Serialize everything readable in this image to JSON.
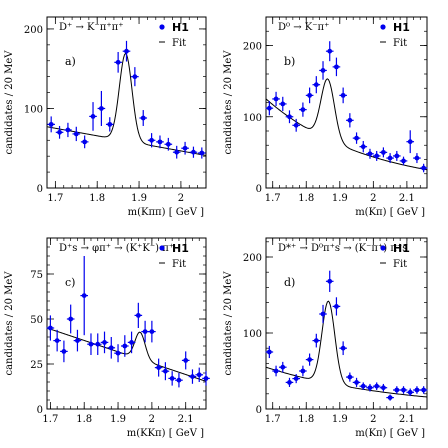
{
  "figure": {
    "background": "#ffffff",
    "marker_color": "#0000ee",
    "fit_color": "#000000"
  },
  "chart_data": [
    {
      "type": "scatter",
      "panel_label": "a)",
      "title": "D⁺ → K⁻π⁺π⁺",
      "xlabel": "m(Kππ)  [ GeV ]",
      "ylabel": "candidates / 20 MeV",
      "xlim": [
        1.68,
        2.06
      ],
      "ylim": [
        0,
        215
      ],
      "xticks": [
        1.7,
        1.8,
        1.9,
        2.0
      ],
      "xticklabels": [
        "1.7",
        "1.8",
        "1.9",
        "2"
      ],
      "yticks": [
        0,
        100,
        200
      ],
      "yticklabels": [
        "0",
        "100",
        "200"
      ],
      "legend": {
        "data_label": "H1",
        "fit_label": "Fit",
        "position": "top-right"
      },
      "series": [
        {
          "name": "H1",
          "kind": "points",
          "x": [
            1.69,
            1.71,
            1.73,
            1.75,
            1.77,
            1.79,
            1.81,
            1.83,
            1.85,
            1.87,
            1.89,
            1.91,
            1.93,
            1.95,
            1.97,
            1.99,
            2.01,
            2.03,
            2.05
          ],
          "y": [
            80,
            70,
            73,
            68,
            58,
            90,
            100,
            80,
            158,
            172,
            140,
            88,
            60,
            58,
            55,
            45,
            50,
            45,
            44
          ],
          "yerr": [
            10,
            8,
            9,
            9,
            8,
            18,
            22,
            9,
            13,
            13,
            12,
            10,
            9,
            8,
            8,
            8,
            8,
            7,
            7
          ]
        },
        {
          "name": "Fit",
          "kind": "curve",
          "model": "gauss_plus_linear",
          "params": {
            "mean": 1.868,
            "sigma": 0.015,
            "amplitude": 110,
            "bg_at_start": 77,
            "bg_slope": -95,
            "x_start": 1.68
          }
        }
      ]
    },
    {
      "type": "scatter",
      "panel_label": "b)",
      "title": "D⁰ → K⁻π⁺",
      "xlabel": "m(Kπ)  [ GeV ]",
      "ylabel": "candidates / 20 MeV",
      "xlim": [
        1.68,
        2.16
      ],
      "ylim": [
        0,
        240
      ],
      "xticks": [
        1.7,
        1.8,
        1.9,
        2.0,
        2.1
      ],
      "xticklabels": [
        "1.7",
        "1.8",
        "1.9",
        "2",
        "2.1"
      ],
      "yticks": [
        0,
        100,
        200
      ],
      "yticklabels": [
        "0",
        "100",
        "200"
      ],
      "legend": {
        "data_label": "H1",
        "fit_label": "Fit",
        "position": "top-right"
      },
      "series": [
        {
          "name": "H1",
          "kind": "points",
          "x": [
            1.69,
            1.71,
            1.73,
            1.75,
            1.77,
            1.79,
            1.81,
            1.83,
            1.85,
            1.87,
            1.89,
            1.91,
            1.93,
            1.95,
            1.97,
            1.99,
            2.01,
            2.03,
            2.05,
            2.07,
            2.09,
            2.11,
            2.13,
            2.15
          ],
          "y": [
            112,
            125,
            118,
            100,
            88,
            110,
            130,
            145,
            165,
            192,
            170,
            130,
            95,
            70,
            58,
            48,
            45,
            50,
            42,
            45,
            38,
            65,
            42,
            28
          ],
          "yerr": [
            10,
            10,
            10,
            9,
            9,
            10,
            11,
            12,
            13,
            14,
            13,
            11,
            10,
            8,
            8,
            7,
            7,
            7,
            7,
            7,
            6,
            16,
            7,
            6
          ]
        },
        {
          "name": "Fit",
          "kind": "curve",
          "model": "gauss_plus_exp",
          "params": {
            "mean": 1.864,
            "sigma": 0.02,
            "amplitude": 85,
            "bg_at_start": 125,
            "bg_decay": 3.3,
            "x_start": 1.68
          }
        }
      ]
    },
    {
      "type": "scatter",
      "panel_label": "c)",
      "title": "D⁺s → φπ⁺ → (K⁺K⁻) π⁺",
      "xlabel": "m(KKπ)  [ GeV ]",
      "ylabel": "candidates / 20 MeV",
      "xlim": [
        1.69,
        2.16
      ],
      "ylim": [
        0,
        95
      ],
      "xticks": [
        1.7,
        1.8,
        1.9,
        2.0,
        2.1
      ],
      "xticklabels": [
        "1.7",
        "1.8",
        "1.9",
        "2",
        "2.1"
      ],
      "yticks": [
        0,
        25,
        50,
        75
      ],
      "yticklabels": [
        "0",
        "25",
        "50",
        "75"
      ],
      "legend": {
        "data_label": "H1",
        "fit_label": "Fit",
        "position": "top-right"
      },
      "series": [
        {
          "name": "H1",
          "kind": "points",
          "x": [
            1.7,
            1.72,
            1.74,
            1.76,
            1.78,
            1.8,
            1.82,
            1.84,
            1.86,
            1.88,
            1.9,
            1.92,
            1.94,
            1.96,
            1.98,
            2.0,
            2.02,
            2.04,
            2.06,
            2.08,
            2.1,
            2.12,
            2.14,
            2.16
          ],
          "y": [
            45,
            38,
            32,
            50,
            38,
            63,
            36,
            36,
            37,
            34,
            31,
            35,
            37,
            52,
            43,
            43,
            23,
            21,
            17,
            16,
            27,
            18,
            19,
            17
          ],
          "yerr": [
            7,
            6,
            6,
            8,
            6,
            22,
            6,
            6,
            6,
            6,
            5,
            6,
            6,
            7,
            6,
            6,
            5,
            5,
            4,
            4,
            5,
            4,
            4,
            4
          ]
        },
        {
          "name": "Fit",
          "kind": "curve",
          "model": "gauss_plus_linear",
          "params": {
            "mean": 1.965,
            "sigma": 0.015,
            "amplitude": 15,
            "bg_at_start": 45,
            "bg_slope": -63,
            "x_start": 1.69
          }
        }
      ]
    },
    {
      "type": "scatter",
      "panel_label": "d)",
      "title": "D*⁺ → D⁰π⁺s → (K⁻π⁺) π⁺s",
      "xlabel": "m(Kπ)  [ GeV ]",
      "ylabel": "candidates / 20 MeV",
      "xlim": [
        1.68,
        2.16
      ],
      "ylim": [
        0,
        225
      ],
      "xticks": [
        1.7,
        1.8,
        1.9,
        2.0,
        2.1
      ],
      "xticklabels": [
        "1.7",
        "1.8",
        "1.9",
        "2",
        "2.1"
      ],
      "yticks": [
        0,
        100,
        200
      ],
      "yticklabels": [
        "0",
        "100",
        "200"
      ],
      "legend": {
        "data_label": "H1",
        "fit_label": "Fit",
        "position": "top-right"
      },
      "series": [
        {
          "name": "H1",
          "kind": "points",
          "x": [
            1.69,
            1.71,
            1.73,
            1.75,
            1.77,
            1.79,
            1.81,
            1.83,
            1.85,
            1.87,
            1.89,
            1.91,
            1.93,
            1.95,
            1.97,
            1.99,
            2.01,
            2.03,
            2.05,
            2.07,
            2.09,
            2.11,
            2.13,
            2.15
          ],
          "y": [
            75,
            50,
            55,
            35,
            40,
            50,
            65,
            90,
            125,
            168,
            135,
            80,
            42,
            35,
            30,
            28,
            30,
            28,
            15,
            25,
            25,
            22,
            25,
            25
          ],
          "yerr": [
            8,
            7,
            7,
            6,
            6,
            7,
            8,
            9,
            12,
            14,
            12,
            9,
            6,
            6,
            5,
            5,
            5,
            5,
            4,
            5,
            5,
            5,
            5,
            5
          ]
        },
        {
          "name": "Fit",
          "kind": "curve",
          "model": "gauss_plus_exp",
          "params": {
            "mean": 1.866,
            "sigma": 0.019,
            "amplitude": 108,
            "bg_at_start": 55,
            "bg_decay": 2.6,
            "x_start": 1.68
          }
        }
      ]
    }
  ]
}
